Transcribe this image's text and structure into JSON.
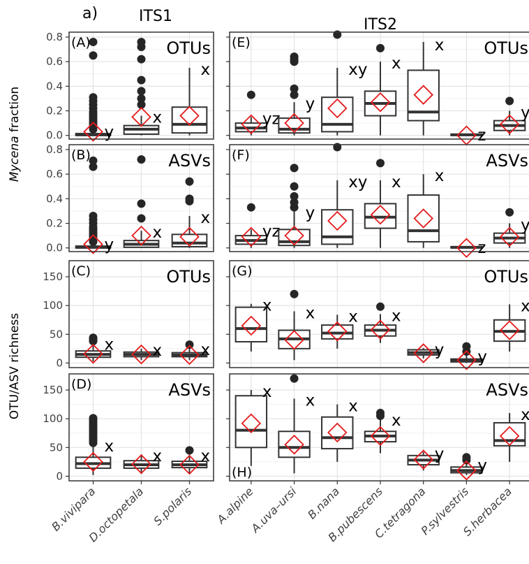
{
  "chart_data": {
    "type": "boxplot",
    "figure_label": "a)",
    "y_labels": {
      "fraction_italic": "Mycena",
      "fraction_rest": "fraction",
      "richness": "OTU/ASV richness"
    },
    "groups": [
      {
        "title": "ITS1",
        "categories": [
          "B.vivipara",
          "D.octopetala",
          "S.polaris"
        ]
      },
      {
        "title": "ITS2",
        "categories": [
          "A.alpine",
          "A.uva–ursi",
          "B.nana",
          "B.pubescens",
          "C.tetragona",
          "P.sylvestris",
          "S.herbacea"
        ]
      }
    ],
    "rows": [
      {
        "metric": "OTUs",
        "ylim": [
          -0.03,
          0.84
        ],
        "yticks": [
          "0.0",
          "0.2",
          "0.4",
          "0.6",
          "0.8"
        ],
        "tickvals": [
          0,
          0.2,
          0.4,
          0.6,
          0.8
        ],
        "panels": [
          {
            "tag": "(A)",
            "boxes": [
              {
                "q1": 0.0,
                "med": 0.005,
                "q3": 0.015,
                "wlo": 0.0,
                "whi": 0.04,
                "mean": 0.03,
                "out": [
                  0.05,
                  0.07,
                  0.09,
                  0.11,
                  0.13,
                  0.15,
                  0.17,
                  0.19,
                  0.22,
                  0.25,
                  0.28,
                  0.31,
                  0.65,
                  0.76
                ],
                "sig": "y"
              },
              {
                "q1": 0.01,
                "med": 0.05,
                "q3": 0.08,
                "wlo": 0.0,
                "whi": 0.16,
                "mean": 0.15,
                "out": [
                  0.25,
                  0.3,
                  0.36,
                  0.45,
                  0.62,
                  0.72,
                  0.76
                ],
                "sig": "x"
              },
              {
                "q1": 0.02,
                "med": 0.09,
                "q3": 0.23,
                "wlo": 0.0,
                "whi": 0.55,
                "mean": 0.16,
                "out": [],
                "sig": "x"
              }
            ]
          },
          {
            "tag": "(E)",
            "boxes": [
              {
                "q1": 0.03,
                "med": 0.06,
                "q3": 0.1,
                "wlo": 0.0,
                "whi": 0.15,
                "mean": 0.09,
                "out": [
                  0.33
                ],
                "sig": "yz"
              },
              {
                "q1": 0.02,
                "med": 0.05,
                "q3": 0.14,
                "wlo": 0.0,
                "whi": 0.27,
                "mean": 0.1,
                "out": [
                  0.33,
                  0.38,
                  0.6,
                  0.62,
                  0.64
                ],
                "sig": "y"
              },
              {
                "q1": 0.03,
                "med": 0.09,
                "q3": 0.31,
                "wlo": 0.0,
                "whi": 0.55,
                "mean": 0.22,
                "out": [
                  0.82
                ],
                "sig": "xy"
              },
              {
                "q1": 0.16,
                "med": 0.26,
                "q3": 0.36,
                "wlo": 0.0,
                "whi": 0.6,
                "mean": 0.27,
                "out": [
                  0.71
                ],
                "sig": "x"
              },
              {
                "q1": 0.12,
                "med": 0.19,
                "q3": 0.53,
                "wlo": 0.0,
                "whi": 0.76,
                "mean": 0.33,
                "out": [],
                "sig": "x"
              },
              {
                "q1": 0.0,
                "med": 0.005,
                "q3": 0.01,
                "wlo": 0.0,
                "whi": 0.015,
                "mean": 0.0,
                "out": [],
                "sig": "z"
              },
              {
                "q1": 0.04,
                "med": 0.08,
                "q3": 0.12,
                "wlo": 0.0,
                "whi": 0.2,
                "mean": 0.09,
                "out": [
                  0.28
                ],
                "sig": "yz"
              }
            ]
          }
        ]
      },
      {
        "metric": "ASVs",
        "ylim": [
          -0.03,
          0.84
        ],
        "yticks": [
          "0.0",
          "0.2",
          "0.4",
          "0.6",
          "0.8"
        ],
        "tickvals": [
          0,
          0.2,
          0.4,
          0.6,
          0.8
        ],
        "panels": [
          {
            "tag": "(B)",
            "boxes": [
              {
                "q1": 0.0,
                "med": 0.005,
                "q3": 0.015,
                "wlo": 0.0,
                "whi": 0.04,
                "mean": 0.03,
                "out": [
                  0.05,
                  0.07,
                  0.09,
                  0.11,
                  0.13,
                  0.15,
                  0.17,
                  0.2,
                  0.23,
                  0.26,
                  0.66,
                  0.71
                ],
                "sig": "y"
              },
              {
                "q1": 0.005,
                "med": 0.03,
                "q3": 0.06,
                "wlo": 0.0,
                "whi": 0.14,
                "mean": 0.1,
                "out": [
                  0.24,
                  0.36,
                  0.72
                ],
                "sig": "x"
              },
              {
                "q1": 0.01,
                "med": 0.04,
                "q3": 0.11,
                "wlo": 0.0,
                "whi": 0.26,
                "mean": 0.09,
                "out": [
                  0.38,
                  0.4,
                  0.54
                ],
                "sig": "x"
              }
            ]
          },
          {
            "tag": "(F)",
            "boxes": [
              {
                "q1": 0.03,
                "med": 0.06,
                "q3": 0.1,
                "wlo": 0.0,
                "whi": 0.15,
                "mean": 0.09,
                "out": [
                  0.33
                ],
                "sig": "yz"
              },
              {
                "q1": 0.02,
                "med": 0.05,
                "q3": 0.15,
                "wlo": 0.0,
                "whi": 0.3,
                "mean": 0.1,
                "out": [
                  0.33,
                  0.37,
                  0.42,
                  0.5,
                  0.65
                ],
                "sig": "y"
              },
              {
                "q1": 0.03,
                "med": 0.09,
                "q3": 0.31,
                "wlo": 0.0,
                "whi": 0.55,
                "mean": 0.22,
                "out": [
                  0.82
                ],
                "sig": "xy"
              },
              {
                "q1": 0.16,
                "med": 0.25,
                "q3": 0.36,
                "wlo": 0.0,
                "whi": 0.55,
                "mean": 0.27,
                "out": [
                  0.69
                ],
                "sig": "x"
              },
              {
                "q1": 0.05,
                "med": 0.14,
                "q3": 0.43,
                "wlo": 0.0,
                "whi": 0.6,
                "mean": 0.24,
                "out": [],
                "sig": "x"
              },
              {
                "q1": 0.0,
                "med": 0.005,
                "q3": 0.01,
                "wlo": 0.0,
                "whi": 0.015,
                "mean": 0.0,
                "out": [],
                "sig": "z"
              },
              {
                "q1": 0.04,
                "med": 0.08,
                "q3": 0.12,
                "wlo": 0.0,
                "whi": 0.2,
                "mean": 0.09,
                "out": [
                  0.29
                ],
                "sig": "yz"
              }
            ]
          }
        ]
      },
      {
        "metric": "OTUs",
        "ylim": [
          -8,
          178
        ],
        "yticks": [
          "0",
          "50",
          "100",
          "150"
        ],
        "tickvals": [
          0,
          50,
          100,
          150
        ],
        "panels": [
          {
            "tag": "(C)",
            "boxes": [
              {
                "q1": 10,
                "med": 15,
                "q3": 21,
                "wlo": 3,
                "whi": 35,
                "mean": 16,
                "out": [
                  38,
                  41,
                  44
                ],
                "sig": "x"
              },
              {
                "q1": 11,
                "med": 15,
                "q3": 19,
                "wlo": 5,
                "whi": 25,
                "mean": 15,
                "out": [],
                "sig": "x"
              },
              {
                "q1": 11,
                "med": 14,
                "q3": 18,
                "wlo": 5,
                "whi": 26,
                "mean": 14,
                "out": [
                  32
                ],
                "sig": "x"
              }
            ]
          },
          {
            "tag": "(G)",
            "boxes": [
              {
                "q1": 37,
                "med": 60,
                "q3": 97,
                "wlo": 20,
                "whi": 103,
                "mean": 65,
                "out": [],
                "sig": "x"
              },
              {
                "q1": 25,
                "med": 42,
                "q3": 57,
                "wlo": 5,
                "whi": 90,
                "mean": 40,
                "out": [
                  120
                ],
                "sig": "x"
              },
              {
                "q1": 42,
                "med": 52,
                "q3": 66,
                "wlo": 25,
                "whi": 84,
                "mean": 55,
                "out": [],
                "sig": "x"
              },
              {
                "q1": 47,
                "med": 57,
                "q3": 66,
                "wlo": 35,
                "whi": 85,
                "mean": 58,
                "out": [
                  98
                ],
                "sig": "x"
              },
              {
                "q1": 14,
                "med": 18,
                "q3": 23,
                "wlo": 8,
                "whi": 26,
                "mean": 17,
                "out": [],
                "sig": "y"
              },
              {
                "q1": 2,
                "med": 4,
                "q3": 7,
                "wlo": 0,
                "whi": 14,
                "mean": 5,
                "out": [
                  20,
                  29
                ],
                "sig": "y"
              },
              {
                "q1": 38,
                "med": 55,
                "q3": 75,
                "wlo": 20,
                "whi": 102,
                "mean": 57,
                "out": [],
                "sig": "x"
              }
            ]
          }
        ]
      },
      {
        "metric": "ASVs",
        "ylim": [
          -8,
          178
        ],
        "yticks": [
          "0",
          "50",
          "100",
          "150"
        ],
        "tickvals": [
          0,
          50,
          100,
          150
        ],
        "panels": [
          {
            "tag": "(D)",
            "boxes": [
              {
                "q1": 14,
                "med": 22,
                "q3": 33,
                "wlo": 2,
                "whi": 55,
                "mean": 25,
                "out": [
                  58,
                  62,
                  66,
                  70,
                  74,
                  78,
                  82,
                  86,
                  90,
                  94,
                  98,
                  101
                ],
                "sig": "x"
              },
              {
                "q1": 14,
                "med": 20,
                "q3": 27,
                "wlo": 4,
                "whi": 38,
                "mean": 21,
                "out": [],
                "sig": "x"
              },
              {
                "q1": 15,
                "med": 20,
                "q3": 26,
                "wlo": 5,
                "whi": 38,
                "mean": 20,
                "out": [
                  45
                ],
                "sig": "x"
              }
            ]
          },
          {
            "tag": "(H)",
            "boxes": [
              {
                "q1": 50,
                "med": 80,
                "q3": 140,
                "wlo": 18,
                "whi": 150,
                "mean": 92,
                "out": [],
                "sig": "x"
              },
              {
                "q1": 33,
                "med": 50,
                "q3": 78,
                "wlo": 5,
                "whi": 135,
                "mean": 55,
                "out": [
                  170
                ],
                "sig": "x"
              },
              {
                "q1": 48,
                "med": 67,
                "q3": 103,
                "wlo": 25,
                "whi": 125,
                "mean": 76,
                "out": [],
                "sig": "x"
              },
              {
                "q1": 60,
                "med": 70,
                "q3": 78,
                "wlo": 40,
                "whi": 100,
                "mean": 70,
                "out": [
                  105,
                  110
                ],
                "sig": "x"
              },
              {
                "q1": 20,
                "med": 28,
                "q3": 36,
                "wlo": 10,
                "whi": 42,
                "mean": 29,
                "out": [],
                "sig": "y"
              },
              {
                "q1": 6,
                "med": 10,
                "q3": 16,
                "wlo": 2,
                "whi": 22,
                "mean": 10,
                "out": [
                  28,
                  33
                ],
                "sig": "y"
              },
              {
                "q1": 53,
                "med": 62,
                "q3": 93,
                "wlo": 25,
                "whi": 110,
                "mean": 70,
                "out": [],
                "sig": "x"
              }
            ]
          }
        ]
      }
    ]
  }
}
